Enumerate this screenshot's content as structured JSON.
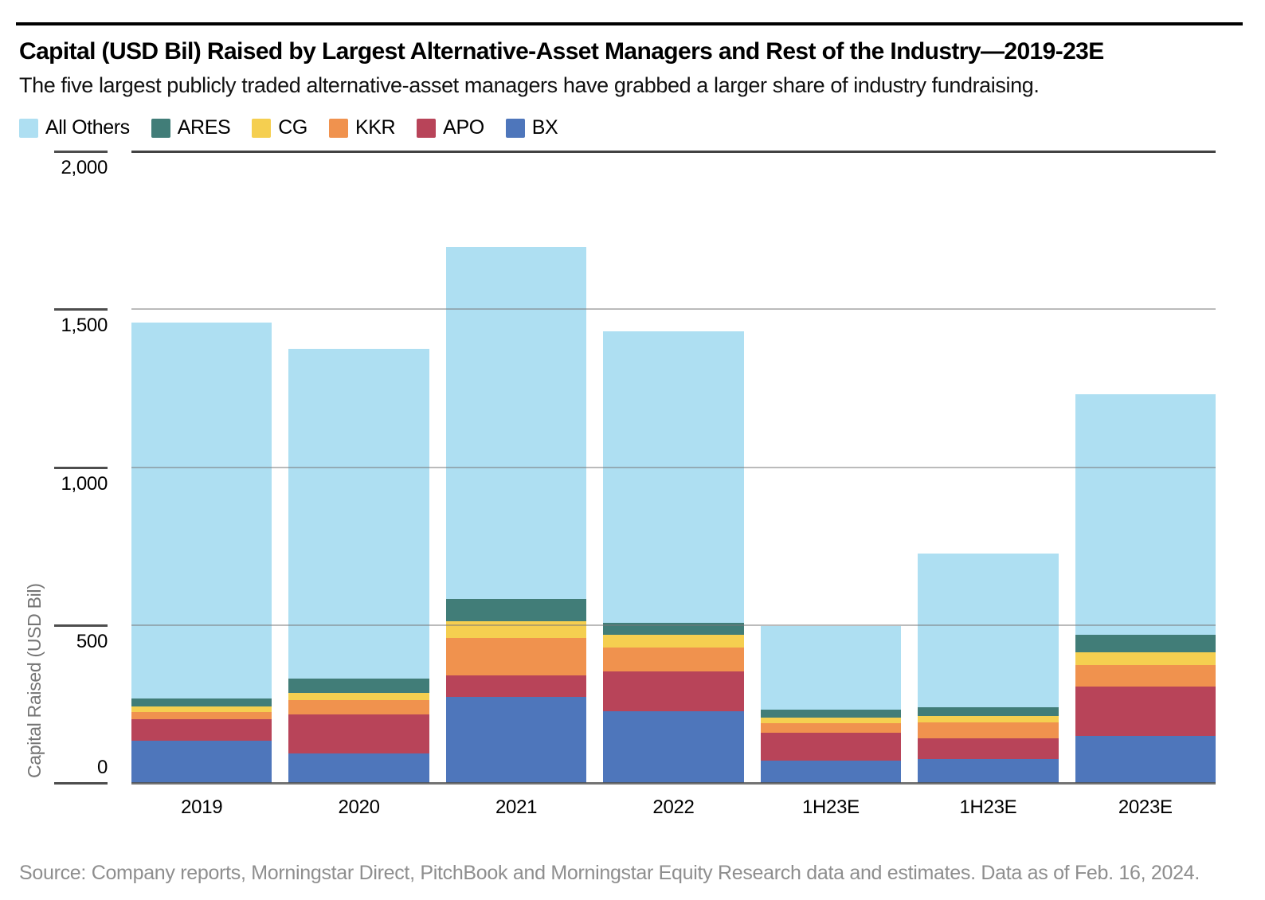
{
  "header": {
    "title": "Capital (USD Bil) Raised by Largest Alternative-Asset Managers and Rest of the Industry—2019-23E",
    "subtitle": "The five largest publicly traded alternative-asset managers have grabbed a larger share of industry fundraising."
  },
  "legend": {
    "items": [
      {
        "label": "All Others",
        "color": "#AEDFF2"
      },
      {
        "label": "ARES",
        "color": "#417D78"
      },
      {
        "label": "CG",
        "color": "#F5CF50"
      },
      {
        "label": "KKR",
        "color": "#F0924E"
      },
      {
        "label": "APO",
        "color": "#B84459"
      },
      {
        "label": "BX",
        "color": "#4E76BB"
      }
    ]
  },
  "chart_data": {
    "type": "bar",
    "stacked": true,
    "title": "Capital (USD Bil) Raised by Largest Alternative-Asset Managers and Rest of the Industry—2019-23E",
    "ylabel": "Capital Raised (USD Bil)",
    "xlabel": "",
    "ylim": [
      0,
      2000
    ],
    "yticks": [
      {
        "value": 0,
        "label": "0"
      },
      {
        "value": 500,
        "label": "500"
      },
      {
        "value": 1000,
        "label": "1,000"
      },
      {
        "value": 1500,
        "label": "1,500"
      },
      {
        "value": 2000,
        "label": "2,000"
      }
    ],
    "grid": "horizontal",
    "legend_position": "top-left",
    "categories": [
      "2019",
      "2020",
      "2021",
      "2022",
      "1H23E",
      "1H23E",
      "2023E"
    ],
    "series": [
      {
        "name": "BX",
        "color": "#4E76BB",
        "values": [
          134,
          93,
          272,
          227,
          71,
          77,
          148
        ]
      },
      {
        "name": "APO",
        "color": "#B84459",
        "values": [
          68,
          124,
          68,
          126,
          88,
          65,
          156
        ]
      },
      {
        "name": "KKR",
        "color": "#F0924E",
        "values": [
          23,
          45,
          118,
          76,
          30,
          50,
          69
        ]
      },
      {
        "name": "CG",
        "color": "#F5CF50",
        "values": [
          18,
          23,
          53,
          40,
          17,
          19,
          40
        ]
      },
      {
        "name": "ARES",
        "color": "#417D78",
        "values": [
          25,
          45,
          73,
          39,
          25,
          29,
          56
        ]
      },
      {
        "name": "All Others",
        "color": "#AEDFF2",
        "values": [
          1190,
          1045,
          1114,
          923,
          266,
          487,
          762
        ]
      }
    ],
    "stack_totals": [
      1458,
      1375,
      1698,
      1431,
      497,
      727,
      1231
    ]
  },
  "source": "Source: Company reports, Morningstar Direct, PitchBook and Morningstar Equity Research data and estimates. Data as of Feb. 16, 2024."
}
